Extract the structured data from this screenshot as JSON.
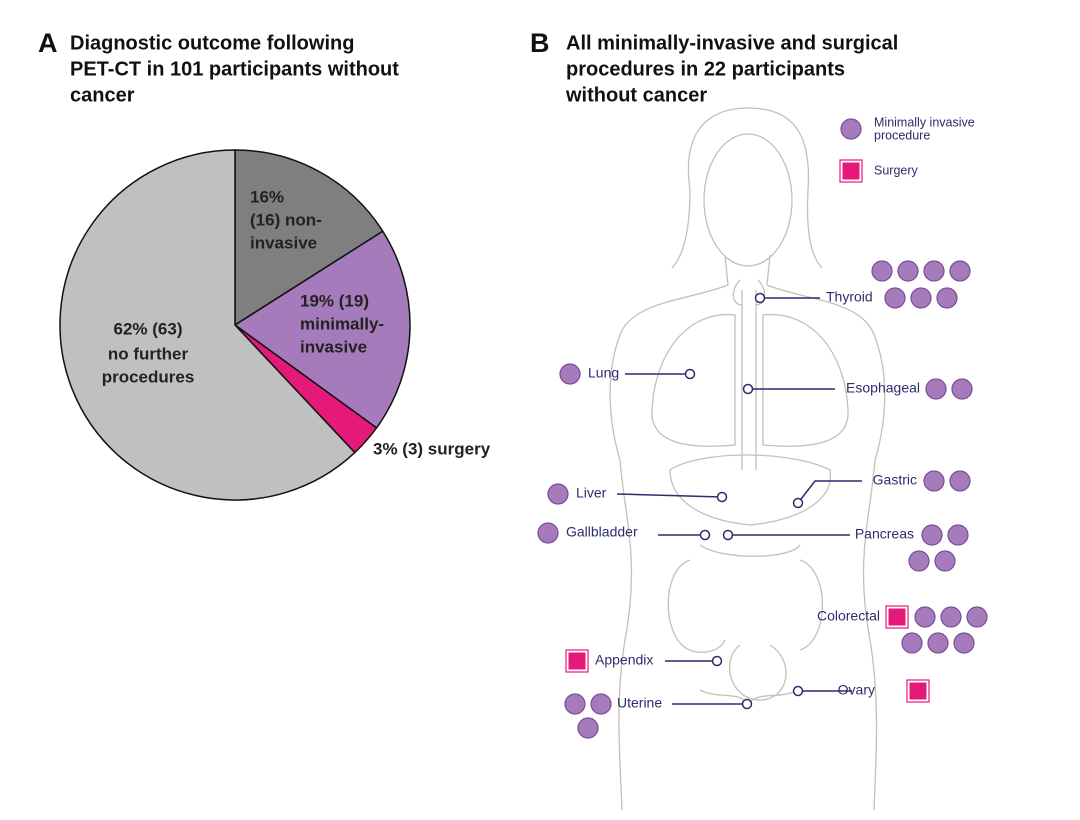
{
  "chart_data": {
    "type": "pie",
    "panel_label": "A",
    "title": [
      "Diagnostic outcome following",
      "PET-CT in 101 participants without",
      "cancer"
    ],
    "values": [
      16,
      19,
      3,
      62
    ],
    "value_labels": [
      [
        "16%",
        "(16) non-",
        "invasive"
      ],
      [
        "19% (19)",
        "minimally-",
        "invasive"
      ],
      [
        "3% (3) surgery"
      ],
      [
        "62% (63)",
        "no further",
        "procedures"
      ]
    ],
    "colors": [
      "#7f7f7f",
      "#a57bbb",
      "#e5197a",
      "#c0c0c0"
    ]
  },
  "diagram": {
    "panel_label": "B",
    "title": [
      "All minimally-invasive and surgical",
      "procedures in 22 participants",
      "without cancer"
    ],
    "legend": {
      "minimally_invasive": [
        "Minimally invasive",
        "procedure"
      ],
      "surgery": [
        "Surgery"
      ]
    },
    "organs": [
      {
        "label": "Thyroid",
        "minimally_invasive": 7
      },
      {
        "label": "Lung",
        "minimally_invasive": 1
      },
      {
        "label": "Esophageal",
        "minimally_invasive": 2
      },
      {
        "label": "Liver",
        "minimally_invasive": 1
      },
      {
        "label": "Gastric",
        "minimally_invasive": 2
      },
      {
        "label": "Gallbladder",
        "minimally_invasive": 1
      },
      {
        "label": "Pancreas",
        "minimally_invasive": 4
      },
      {
        "label": "Colorectal",
        "surgery": 1,
        "minimally_invasive": 6
      },
      {
        "label": "Appendix",
        "surgery": 1
      },
      {
        "label": "Uterine",
        "minimally_invasive": 3
      },
      {
        "label": "Ovary",
        "surgery": 1
      }
    ]
  }
}
